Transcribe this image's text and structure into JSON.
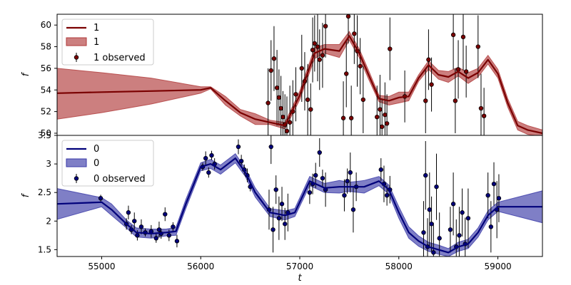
{
  "chart_data": [
    {
      "type": "line",
      "xlabel": "t",
      "ylabel": "f",
      "xlim": [
        54550,
        59450
      ],
      "ylim": [
        49.8,
        61.0
      ],
      "xticks": [],
      "yticks": [
        50,
        52,
        54,
        56,
        58,
        60
      ],
      "colors": {
        "line": "#7a0000",
        "band": "#b03a3a",
        "points": "#7a0000"
      },
      "legend": {
        "position": "top-left",
        "entries": [
          "1",
          "1",
          "1 observed"
        ]
      },
      "series": [
        {
          "name": "1",
          "kind": "mean",
          "x": [
            54550,
            55000,
            55500,
            56000,
            56100,
            56250,
            56400,
            56550,
            56700,
            56850,
            57000,
            57150,
            57250,
            57400,
            57500,
            57600,
            57700,
            57800,
            57900,
            58000,
            58100,
            58200,
            58300,
            58400,
            58500,
            58600,
            58700,
            58800,
            58900,
            59000,
            59100,
            59200,
            59300,
            59450
          ],
          "y": [
            53.7,
            53.8,
            53.9,
            54.0,
            54.2,
            53.0,
            51.9,
            51.3,
            51.0,
            50.7,
            53.5,
            57.4,
            57.8,
            57.6,
            59.0,
            57.4,
            55.3,
            53.2,
            53.0,
            53.3,
            53.4,
            55.1,
            56.3,
            55.4,
            55.2,
            55.7,
            55.1,
            55.6,
            56.8,
            55.5,
            52.8,
            50.7,
            50.3,
            50.0
          ]
        },
        {
          "name": "1",
          "kind": "band",
          "x": [
            54550,
            55000,
            55500,
            56000,
            56100,
            56250,
            56400,
            56550,
            56700,
            56850,
            57000,
            57150,
            57250,
            57400,
            57500,
            57600,
            57700,
            57800,
            57900,
            58000,
            58100,
            58200,
            58300,
            58400,
            58500,
            58600,
            58700,
            58800,
            58900,
            59000,
            59100,
            59200,
            59300,
            59450
          ],
          "lower": [
            51.3,
            51.9,
            52.7,
            53.7,
            54.1,
            52.6,
            51.6,
            50.8,
            50.8,
            50.4,
            53.1,
            56.9,
            57.4,
            57.0,
            58.6,
            57.0,
            54.9,
            52.9,
            52.6,
            52.8,
            53.0,
            54.8,
            55.9,
            55.0,
            54.7,
            55.3,
            54.6,
            55.2,
            56.4,
            55.1,
            52.4,
            50.3,
            49.9,
            49.7
          ],
          "upper": [
            56.0,
            55.6,
            55.1,
            54.3,
            54.3,
            53.4,
            52.2,
            51.8,
            51.2,
            51.0,
            53.9,
            57.9,
            58.2,
            58.2,
            59.4,
            57.8,
            55.7,
            53.5,
            53.4,
            53.8,
            53.8,
            55.4,
            56.7,
            55.8,
            55.7,
            56.1,
            55.6,
            56.0,
            57.2,
            55.9,
            53.2,
            51.1,
            50.7,
            50.3
          ]
        },
        {
          "name": "1 observed",
          "kind": "observed",
          "x": [
            56680,
            56710,
            56740,
            56770,
            56790,
            56810,
            56830,
            56850,
            56870,
            56900,
            56930,
            56960,
            57020,
            57050,
            57080,
            57110,
            57130,
            57150,
            57180,
            57200,
            57230,
            57260,
            57440,
            57470,
            57490,
            57520,
            57550,
            57580,
            57610,
            57640,
            57780,
            57810,
            57830,
            57860,
            57880,
            57910,
            58060,
            58270,
            58300,
            58330,
            58550,
            58570,
            58600,
            58650,
            58680,
            58800,
            58830,
            58860
          ],
          "y": [
            52.8,
            55.8,
            56.9,
            54.2,
            53.3,
            52.3,
            51.5,
            50.8,
            50.2,
            51.0,
            52.0,
            53.6,
            56.0,
            54.8,
            53.1,
            52.2,
            57.7,
            58.3,
            58.0,
            56.8,
            57.2,
            59.9,
            51.4,
            55.5,
            60.8,
            51.4,
            59.2,
            57.6,
            56.2,
            53.1,
            51.5,
            52.2,
            50.6,
            51.7,
            50.9,
            57.8,
            53.4,
            53.0,
            56.8,
            54.5,
            59.1,
            53.0,
            55.9,
            58.9,
            55.7,
            58.0,
            52.3,
            51.6
          ],
          "err": [
            3.2,
            2.8,
            3.0,
            3.5,
            2.6,
            3.0,
            2.4,
            2.8,
            3.2,
            3.4,
            2.9,
            2.5,
            3.1,
            2.7,
            3.3,
            2.4,
            3.0,
            2.6,
            3.2,
            2.8,
            3.0,
            2.9,
            3.4,
            3.1,
            2.5,
            3.0,
            2.8,
            3.3,
            2.6,
            3.1,
            2.9,
            3.2,
            2.6,
            3.0,
            2.7,
            2.9,
            2.4,
            3.0,
            2.8,
            2.5,
            3.2,
            3.0,
            2.7,
            3.1,
            2.4,
            2.9,
            3.2,
            2.6
          ]
        }
      ]
    },
    {
      "type": "line",
      "xlabel": "t",
      "ylabel": "f",
      "xlim": [
        54550,
        59450
      ],
      "ylim": [
        1.38,
        3.5
      ],
      "xticks": [
        55000,
        56000,
        57000,
        58000,
        59000
      ],
      "yticks": [
        1.5,
        2.0,
        2.5,
        3.0,
        3.5
      ],
      "colors": {
        "line": "#00007a",
        "band": "#3a3aa8",
        "points": "#00007a"
      },
      "legend": {
        "position": "top-left",
        "entries": [
          "0",
          "0",
          "0 observed"
        ]
      },
      "series": [
        {
          "name": "0",
          "kind": "mean",
          "x": [
            54550,
            55000,
            55100,
            55250,
            55350,
            55500,
            55650,
            55750,
            55850,
            56000,
            56100,
            56200,
            56350,
            56450,
            56550,
            56700,
            56850,
            56950,
            57100,
            57250,
            57400,
            57500,
            57650,
            57800,
            57900,
            58000,
            58100,
            58200,
            58300,
            58400,
            58500,
            58600,
            58700,
            58800,
            58900,
            59000,
            59450
          ],
          "y": [
            2.3,
            2.33,
            2.2,
            1.95,
            1.8,
            1.78,
            1.8,
            1.82,
            2.3,
            2.95,
            3.0,
            2.9,
            3.1,
            2.85,
            2.5,
            2.15,
            2.1,
            2.15,
            2.7,
            2.58,
            2.6,
            2.6,
            2.6,
            2.7,
            2.55,
            2.15,
            1.8,
            1.65,
            1.55,
            1.5,
            1.45,
            1.55,
            1.6,
            1.8,
            2.1,
            2.25,
            2.25
          ]
        },
        {
          "name": "0",
          "kind": "band",
          "x": [
            54550,
            55000,
            55100,
            55250,
            55350,
            55500,
            55650,
            55750,
            55850,
            56000,
            56100,
            56200,
            56350,
            56450,
            56550,
            56700,
            56850,
            56950,
            57100,
            57250,
            57400,
            57500,
            57650,
            57800,
            57900,
            58000,
            58100,
            58200,
            58300,
            58400,
            58500,
            58600,
            58700,
            58800,
            58900,
            59000,
            59450
          ],
          "lower": [
            2.03,
            2.25,
            2.1,
            1.88,
            1.72,
            1.7,
            1.74,
            1.75,
            2.22,
            2.88,
            2.92,
            2.82,
            3.02,
            2.78,
            2.42,
            2.08,
            2.02,
            2.08,
            2.62,
            2.5,
            2.49,
            2.52,
            2.49,
            2.62,
            2.47,
            2.05,
            1.7,
            1.56,
            1.47,
            1.42,
            1.38,
            1.47,
            1.52,
            1.72,
            2.02,
            2.17,
            1.97
          ],
          "upper": [
            2.57,
            2.41,
            2.3,
            2.02,
            1.88,
            1.86,
            1.86,
            1.89,
            2.38,
            3.02,
            3.08,
            2.98,
            3.18,
            2.92,
            2.58,
            2.22,
            2.18,
            2.22,
            2.78,
            2.66,
            2.71,
            2.68,
            2.71,
            2.78,
            2.63,
            2.25,
            1.9,
            1.74,
            1.63,
            1.58,
            1.52,
            1.63,
            1.68,
            1.88,
            2.18,
            2.33,
            2.53
          ]
        },
        {
          "name": "0 observed",
          "kind": "observed",
          "x": [
            54990,
            55250,
            55270,
            55300,
            55330,
            55360,
            55400,
            55440,
            55500,
            55550,
            55580,
            55600,
            55640,
            55680,
            55720,
            55760,
            56020,
            56050,
            56080,
            56110,
            56140,
            56380,
            56410,
            56440,
            56470,
            56500,
            56690,
            56710,
            56730,
            56760,
            56790,
            56820,
            56850,
            56880,
            57100,
            57130,
            57160,
            57200,
            57230,
            57260,
            57450,
            57480,
            57510,
            57540,
            57570,
            57820,
            57850,
            57880,
            57910,
            58250,
            58270,
            58290,
            58310,
            58330,
            58350,
            58380,
            58410,
            58520,
            58550,
            58580,
            58610,
            58640,
            58670,
            58700,
            58900,
            58930,
            58960,
            58990,
            59010
          ],
          "y": [
            2.4,
            1.95,
            2.15,
            1.85,
            2.0,
            1.75,
            1.9,
            1.8,
            1.82,
            1.7,
            1.85,
            1.78,
            2.12,
            1.75,
            1.9,
            1.65,
            2.95,
            3.1,
            2.85,
            3.15,
            3.0,
            3.3,
            3.05,
            2.9,
            2.8,
            2.6,
            2.2,
            3.3,
            1.85,
            2.55,
            2.05,
            2.3,
            1.95,
            2.15,
            2.5,
            2.65,
            2.8,
            3.2,
            2.75,
            2.55,
            2.45,
            2.7,
            2.85,
            2.2,
            2.6,
            2.9,
            2.65,
            2.45,
            2.55,
            1.8,
            2.8,
            1.55,
            2.2,
            1.95,
            1.45,
            2.6,
            1.7,
            1.85,
            2.3,
            1.55,
            1.75,
            2.15,
            1.6,
            2.05,
            2.45,
            1.9,
            2.65,
            2.2,
            2.4
          ],
          "err": [
            0.06,
            0.1,
            0.12,
            0.08,
            0.15,
            0.09,
            0.13,
            0.07,
            0.11,
            0.08,
            0.14,
            0.09,
            0.12,
            0.1,
            0.08,
            0.11,
            0.07,
            0.12,
            0.09,
            0.08,
            0.1,
            0.13,
            0.11,
            0.09,
            0.12,
            0.08,
            0.35,
            0.3,
            0.4,
            0.25,
            0.38,
            0.3,
            0.28,
            0.33,
            0.2,
            0.18,
            0.22,
            0.25,
            0.15,
            0.3,
            0.28,
            0.22,
            0.35,
            0.4,
            0.25,
            0.2,
            0.32,
            0.18,
            0.24,
            0.55,
            0.6,
            0.5,
            0.65,
            0.48,
            0.52,
            0.58,
            0.45,
            0.4,
            0.55,
            0.48,
            0.5,
            0.42,
            0.46,
            0.52,
            0.4,
            0.45,
            0.38,
            0.5,
            0.42
          ]
        }
      ]
    }
  ]
}
